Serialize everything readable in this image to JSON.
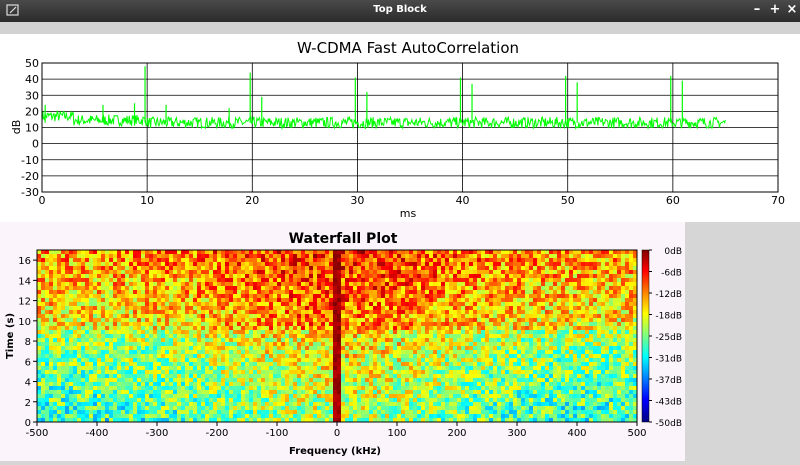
{
  "window": {
    "title": "Top Block",
    "buttons": {
      "minimize": "–",
      "maximize": "+",
      "close": "×"
    }
  },
  "autocorr": {
    "title": "W-CDMA Fast AutoCorrelation",
    "xlabel": "ms",
    "ylabel": "dB",
    "trace_color": "#00ff00"
  },
  "waterfall": {
    "title": "Waterfall Plot",
    "xlabel": "Frequency (kHz)",
    "ylabel": "Time (s)"
  },
  "chart_data": [
    {
      "type": "line",
      "title": "W-CDMA Fast AutoCorrelation",
      "xlabel": "ms",
      "ylabel": "dB",
      "xlim": [
        0,
        70
      ],
      "ylim": [
        -30,
        50
      ],
      "xticks": [
        0,
        10,
        20,
        30,
        40,
        50,
        60,
        70
      ],
      "yticks": [
        50,
        40,
        30,
        20,
        10,
        0,
        -10,
        -20,
        -30
      ],
      "grid": true,
      "series": [
        {
          "baseline_db": 13,
          "x_range": [
            0,
            65
          ],
          "peaks": [
            {
              "x": 0.3,
              "y": 24
            },
            {
              "x": 5.8,
              "y": 24
            },
            {
              "x": 8.8,
              "y": 25
            },
            {
              "x": 9.8,
              "y": 48
            },
            {
              "x": 11.8,
              "y": 24
            },
            {
              "x": 17.8,
              "y": 22
            },
            {
              "x": 19.8,
              "y": 44
            },
            {
              "x": 20.9,
              "y": 29
            },
            {
              "x": 29.8,
              "y": 41
            },
            {
              "x": 30.9,
              "y": 32
            },
            {
              "x": 39.8,
              "y": 41
            },
            {
              "x": 40.9,
              "y": 37
            },
            {
              "x": 49.8,
              "y": 42
            },
            {
              "x": 50.9,
              "y": 38
            },
            {
              "x": 59.8,
              "y": 42
            },
            {
              "x": 60.9,
              "y": 39
            }
          ]
        }
      ]
    },
    {
      "type": "heatmap",
      "title": "Waterfall Plot",
      "xlabel": "Frequency (kHz)",
      "ylabel": "Time (s)",
      "xlim": [
        -500,
        500
      ],
      "ylim": [
        0,
        17
      ],
      "xticks": [
        -500,
        -400,
        -300,
        -200,
        -100,
        0,
        100,
        200,
        300,
        400,
        500
      ],
      "yticks": [
        0,
        2,
        4,
        6,
        8,
        10,
        12,
        14,
        16
      ],
      "colorbar": {
        "labels": [
          "0dB",
          "-6dB",
          "-12dB",
          "-18dB",
          "-25dB",
          "-31dB",
          "-37dB",
          "-43dB",
          "-50dB"
        ],
        "range": [
          -50,
          0
        ]
      },
      "carrier_khz": 0
    }
  ]
}
